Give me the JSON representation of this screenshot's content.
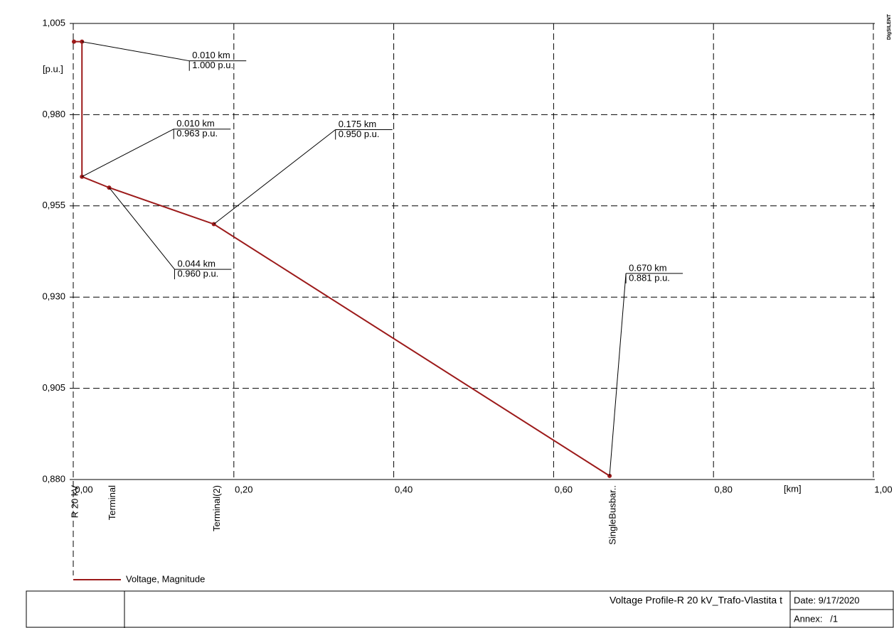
{
  "chart_data": {
    "type": "line",
    "y_label": "[p.u.]",
    "x_label": "[km]",
    "x": [
      0.0,
      0.01,
      0.01,
      0.044,
      0.175,
      0.67
    ],
    "series": [
      {
        "name": "Voltage, Magnitude",
        "color": "#9c1a1a",
        "values": [
          1.0,
          1.0,
          0.963,
          0.96,
          0.95,
          0.881
        ]
      }
    ],
    "value_labels": [
      null,
      "1.000 p.u.",
      "0.963 p.u.",
      "0.960 p.u.",
      "0.950 p.u.",
      "0.881 p.u."
    ],
    "x_value_labels": [
      null,
      "0.010 km",
      "0.010 km",
      "0.044 km",
      "0.175 km",
      "0.670 km"
    ],
    "node_labels": [
      "R 20 kV",
      null,
      null,
      "Terminal",
      "Terminal(2)",
      "SingleBusbar.."
    ],
    "xlim": [
      0,
      1.0
    ],
    "xticks": [
      {
        "value": 0,
        "label": "0,00"
      },
      {
        "value": 0.2,
        "label": "0,20"
      },
      {
        "value": 0.4,
        "label": "0,40"
      },
      {
        "value": 0.6,
        "label": "0,60"
      },
      {
        "value": 0.8,
        "label": "0,80"
      },
      {
        "value": 1.0,
        "label": "1,00"
      }
    ],
    "ylim": [
      0.88,
      1.005
    ],
    "yticks": [
      {
        "value": 0.88,
        "label": "0,880"
      },
      {
        "value": 0.905,
        "label": "0,905"
      },
      {
        "value": 0.93,
        "label": "0,930"
      },
      {
        "value": 0.955,
        "label": "0,955"
      },
      {
        "value": 0.98,
        "label": "0,980"
      },
      {
        "value": 1.005,
        "label": "1,005"
      }
    ],
    "grid": true
  },
  "logo": "DIgSILENT",
  "footer": {
    "title": "Voltage Profile-R 20 kV_Trafo-Vlastita t",
    "date": "Date: 9/17/2020",
    "annex": "Annex:   /1"
  }
}
